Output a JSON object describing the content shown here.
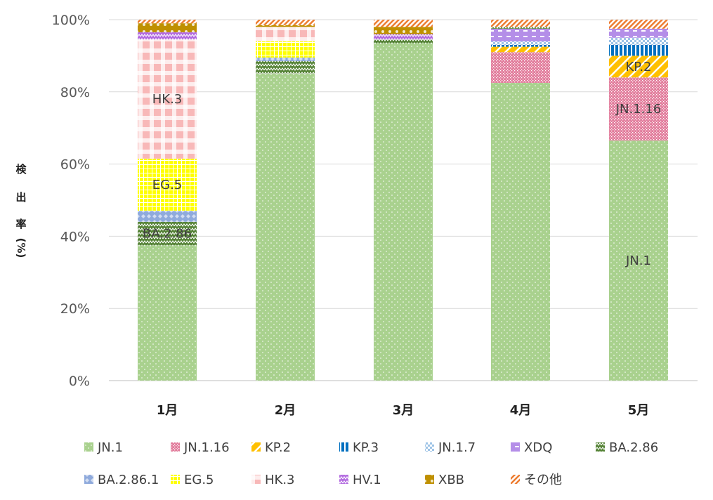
{
  "chart_data": {
    "type": "bar",
    "stacked": true,
    "ylabel_chars": [
      "検",
      "出",
      "率",
      "(%)"
    ],
    "ylim": [
      0,
      100
    ],
    "yticks": [
      "0%",
      "20%",
      "40%",
      "60%",
      "80%",
      "100%"
    ],
    "categories": [
      "1月",
      "2月",
      "3月",
      "4月",
      "5月"
    ],
    "grid": true,
    "legend_position": "bottom",
    "series": [
      {
        "name": "JN.1",
        "color": "#a9d18e",
        "pattern": "dots",
        "values": [
          37.5,
          85,
          93.5,
          82.5,
          66.5
        ]
      },
      {
        "name": "JN.1.16",
        "color": "#e17a9a",
        "pattern": "fine",
        "values": [
          0,
          0,
          0,
          8.5,
          17.5
        ]
      },
      {
        "name": "KP.2",
        "color": "#ffc000",
        "pattern": "wide",
        "values": [
          0,
          0,
          0,
          1.5,
          6
        ]
      },
      {
        "name": "KP.3",
        "color": "#0070c0",
        "pattern": "vbars",
        "values": [
          0,
          0,
          0,
          0.5,
          3
        ]
      },
      {
        "name": "JN.1.7",
        "color": "#9dc3e6",
        "pattern": "check",
        "values": [
          0,
          0,
          0,
          1,
          2
        ]
      },
      {
        "name": "XDQ",
        "color": "#b48ee8",
        "pattern": "dash",
        "values": [
          0,
          0,
          0,
          3.5,
          2.5
        ]
      },
      {
        "name": "BA.2.86",
        "color": "#548235",
        "pattern": "zigzag",
        "values": [
          6.5,
          3.5,
          1,
          0.5,
          0
        ]
      },
      {
        "name": "BA.2.86.1",
        "color": "#8faadc",
        "pattern": "diamond",
        "values": [
          3,
          1,
          0,
          0,
          0
        ]
      },
      {
        "name": "EG.5",
        "color": "#ffff00",
        "pattern": "grid",
        "values": [
          14.5,
          4.5,
          0,
          0,
          0
        ]
      },
      {
        "name": "HK.3",
        "color": "#f8b8b8",
        "pattern": "plaid",
        "values": [
          33,
          4,
          0,
          0,
          0
        ]
      },
      {
        "name": "HV.1",
        "color": "#b36be0",
        "pattern": "zigzag",
        "values": [
          2,
          0,
          1.5,
          0,
          0
        ]
      },
      {
        "name": "XBB",
        "color": "#bf9000",
        "pattern": "chain",
        "values": [
          2.5,
          0.5,
          2,
          0,
          0
        ]
      },
      {
        "name": "その他",
        "color": "#ed7d31",
        "pattern": "diag",
        "values": [
          1,
          1.5,
          2,
          2,
          2.5
        ]
      }
    ],
    "data_labels": [
      {
        "category": "1月",
        "series": "BA.2.86",
        "text": "BA.2.86"
      },
      {
        "category": "1月",
        "series": "EG.5",
        "text": "EG.5"
      },
      {
        "category": "1月",
        "series": "HK.3",
        "text": "HK.3"
      },
      {
        "category": "5月",
        "series": "JN.1",
        "text": "JN.1"
      },
      {
        "category": "5月",
        "series": "JN.1.16",
        "text": "JN.1.16"
      },
      {
        "category": "5月",
        "series": "KP.2",
        "text": "KP.2"
      }
    ]
  }
}
